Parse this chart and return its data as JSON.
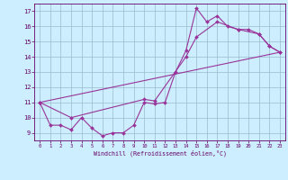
{
  "xlabel": "Windchill (Refroidissement éolien,°C)",
  "xlim": [
    -0.5,
    23.5
  ],
  "ylim": [
    8.5,
    17.5
  ],
  "yticks": [
    9,
    10,
    11,
    12,
    13,
    14,
    15,
    16,
    17
  ],
  "xticks": [
    0,
    1,
    2,
    3,
    4,
    5,
    6,
    7,
    8,
    9,
    10,
    11,
    12,
    13,
    14,
    15,
    16,
    17,
    18,
    19,
    20,
    21,
    22,
    23
  ],
  "background_color": "#cceeff",
  "grid_color": "#99bbcc",
  "line_color": "#993399",
  "line1_x": [
    0,
    1,
    2,
    3,
    4,
    5,
    6,
    7,
    8,
    9,
    10,
    11,
    12,
    13,
    14,
    15,
    16,
    17,
    18,
    19,
    20,
    21,
    22,
    23
  ],
  "line1_y": [
    11.0,
    9.5,
    9.5,
    9.2,
    10.0,
    9.3,
    8.8,
    9.0,
    9.0,
    9.5,
    11.0,
    10.9,
    11.0,
    13.0,
    14.4,
    17.2,
    16.3,
    16.7,
    16.0,
    15.8,
    15.8,
    15.5,
    14.7,
    14.3
  ],
  "line2_x": [
    0,
    3,
    10,
    11,
    14,
    15,
    17,
    19,
    21,
    22,
    23
  ],
  "line2_y": [
    11.0,
    10.0,
    11.2,
    11.1,
    14.0,
    15.3,
    16.3,
    15.8,
    15.5,
    14.7,
    14.3
  ],
  "line3_x": [
    0,
    23
  ],
  "line3_y": [
    11.0,
    14.3
  ],
  "marker_x": [
    0,
    1,
    3,
    4,
    5,
    6,
    7,
    8,
    9,
    10,
    11,
    14,
    15,
    16,
    17,
    18,
    19,
    20,
    21,
    22,
    23
  ],
  "marker_y": [
    11.0,
    9.5,
    9.2,
    10.0,
    9.3,
    8.8,
    9.0,
    9.0,
    9.5,
    11.0,
    10.9,
    14.4,
    17.2,
    16.3,
    16.7,
    16.0,
    15.8,
    15.8,
    15.5,
    14.7,
    14.3
  ]
}
